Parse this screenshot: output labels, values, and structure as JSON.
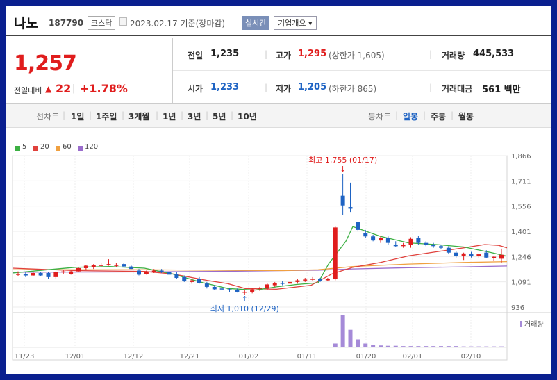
{
  "header": {
    "name": "나노",
    "code": "187790",
    "market": "코스닥",
    "date": "2023.02.17 기준(장마감)",
    "realtime": "실시간",
    "overview": "기업개요 ▾"
  },
  "summary": {
    "price": "1,257",
    "change_label": "전일대비",
    "change_arrow": "▲",
    "change_value": "22",
    "change_sep": "|",
    "change_pct": "+1.78%",
    "prev_label": "전일",
    "prev_value": "1,235",
    "high_label": "고가",
    "high_value": "1,295",
    "upper_limit": "(상한가 1,605)",
    "volume_label": "거래량",
    "volume_value": "445,533",
    "open_label": "시가",
    "open_value": "1,233",
    "low_label": "저가",
    "low_value": "1,205",
    "lower_limit": "(하한가 865)",
    "amount_label": "거래대금",
    "amount_value": "561 백만",
    "sep": "|"
  },
  "toolbar": {
    "line_label": "선차트",
    "line_periods": [
      "1일",
      "1주일",
      "3개월",
      "1년",
      "3년",
      "5년",
      "10년"
    ],
    "candle_label": "봉차트",
    "candle_periods": [
      "일봉",
      "주봉",
      "월봉"
    ],
    "active_candle": "일봉",
    "sep": "|"
  },
  "colors": {
    "up": "#e01d1d",
    "down": "#1e63c3",
    "ma5": "#3cb043",
    "ma20": "#e0413c",
    "ma60": "#f0a040",
    "ma120": "#9a6ccc",
    "volume": "#a58ad8"
  },
  "chart_data": {
    "type": "candlestick",
    "y_ticks": [
      "1,866",
      "1,711",
      "1,556",
      "1,401",
      "1,246",
      "1,091",
      "936"
    ],
    "ylim": [
      936,
      1866
    ],
    "x_ticks": [
      "11/23",
      "12/01",
      "12/12",
      "12/21",
      "01/02",
      "01/11",
      "01/20",
      "02/01",
      "02/10"
    ],
    "legend": [
      "5",
      "20",
      "60",
      "120"
    ],
    "volume_label": "거래량",
    "max_annotation": "최고 1,755 (01/17)",
    "min_annotation": "최저 1,010 (12/29)",
    "candles": [
      [
        1140,
        1155,
        1125,
        1140
      ],
      [
        1140,
        1150,
        1120,
        1130
      ],
      [
        1130,
        1155,
        1125,
        1145
      ],
      [
        1145,
        1150,
        1125,
        1130
      ],
      [
        1145,
        1150,
        1110,
        1120
      ],
      [
        1120,
        1155,
        1110,
        1150
      ],
      [
        1150,
        1165,
        1140,
        1155
      ],
      [
        1140,
        1160,
        1135,
        1155
      ],
      [
        1155,
        1180,
        1150,
        1175
      ],
      [
        1175,
        1195,
        1165,
        1190
      ],
      [
        1180,
        1200,
        1170,
        1195
      ],
      [
        1190,
        1205,
        1180,
        1195
      ],
      [
        1195,
        1230,
        1190,
        1200
      ],
      [
        1190,
        1205,
        1180,
        1195
      ],
      [
        1200,
        1205,
        1180,
        1185
      ],
      [
        1185,
        1190,
        1170,
        1170
      ],
      [
        1160,
        1170,
        1130,
        1135
      ],
      [
        1140,
        1160,
        1135,
        1155
      ],
      [
        1150,
        1170,
        1145,
        1160
      ],
      [
        1160,
        1170,
        1145,
        1150
      ],
      [
        1150,
        1160,
        1130,
        1135
      ],
      [
        1140,
        1150,
        1110,
        1115
      ],
      [
        1120,
        1130,
        1090,
        1095
      ],
      [
        1090,
        1110,
        1080,
        1100
      ],
      [
        1110,
        1120,
        1080,
        1085
      ],
      [
        1080,
        1090,
        1050,
        1060
      ],
      [
        1060,
        1070,
        1040,
        1045
      ],
      [
        1050,
        1060,
        1040,
        1045
      ],
      [
        1045,
        1055,
        1030,
        1040
      ],
      [
        1040,
        1050,
        1025,
        1030
      ],
      [
        1030,
        1040,
        1010,
        1030
      ],
      [
        1030,
        1050,
        1020,
        1045
      ],
      [
        1050,
        1060,
        1035,
        1055
      ],
      [
        1050,
        1080,
        1040,
        1075
      ],
      [
        1070,
        1090,
        1060,
        1085
      ],
      [
        1085,
        1095,
        1070,
        1080
      ],
      [
        1080,
        1095,
        1070,
        1090
      ],
      [
        1090,
        1110,
        1080,
        1100
      ],
      [
        1100,
        1115,
        1090,
        1105
      ],
      [
        1105,
        1120,
        1095,
        1110
      ],
      [
        1110,
        1115,
        1090,
        1095
      ],
      [
        1100,
        1115,
        1095,
        1110
      ],
      [
        1110,
        1430,
        1100,
        1425
      ],
      [
        1620,
        1755,
        1500,
        1560
      ],
      [
        1550,
        1700,
        1520,
        1540
      ],
      [
        1460,
        1460,
        1400,
        1410
      ],
      [
        1390,
        1410,
        1360,
        1370
      ],
      [
        1370,
        1380,
        1340,
        1345
      ],
      [
        1345,
        1370,
        1330,
        1360
      ],
      [
        1360,
        1370,
        1320,
        1330
      ],
      [
        1320,
        1340,
        1305,
        1310
      ],
      [
        1310,
        1330,
        1300,
        1320
      ],
      [
        1320,
        1365,
        1300,
        1355
      ],
      [
        1360,
        1375,
        1320,
        1330
      ],
      [
        1330,
        1340,
        1310,
        1320
      ],
      [
        1320,
        1330,
        1300,
        1310
      ],
      [
        1310,
        1320,
        1290,
        1300
      ],
      [
        1300,
        1310,
        1260,
        1270
      ],
      [
        1270,
        1280,
        1240,
        1250
      ],
      [
        1250,
        1270,
        1225,
        1265
      ],
      [
        1260,
        1275,
        1240,
        1250
      ],
      [
        1250,
        1265,
        1235,
        1260
      ],
      [
        1270,
        1285,
        1235,
        1240
      ],
      [
        1240,
        1250,
        1220,
        1245
      ],
      [
        1233,
        1295,
        1205,
        1257
      ]
    ],
    "volumes": [
      0,
      0,
      0,
      0,
      0,
      0,
      0,
      0,
      0,
      1,
      0,
      0,
      0,
      0,
      0,
      0,
      0,
      0,
      0,
      0,
      0,
      0,
      0,
      0,
      0,
      0,
      0,
      0,
      0,
      0,
      0,
      0,
      0,
      0,
      0,
      0,
      0,
      0,
      0,
      0,
      0,
      0,
      12,
      100,
      55,
      25,
      12,
      8,
      6,
      5,
      5,
      4,
      4,
      4,
      4,
      4,
      4,
      4,
      4,
      3,
      3,
      3,
      3,
      3,
      3
    ],
    "ma5": [
      [
        10,
        1145
      ],
      [
        60,
        1165
      ],
      [
        100,
        1180
      ],
      [
        150,
        1185
      ],
      [
        200,
        1175
      ],
      [
        240,
        1140
      ],
      [
        280,
        1090
      ],
      [
        320,
        1050
      ],
      [
        360,
        1040
      ],
      [
        390,
        1060
      ],
      [
        420,
        1075
      ],
      [
        450,
        1085
      ],
      [
        465,
        1200
      ],
      [
        490,
        1340
      ],
      [
        500,
        1430
      ],
      [
        540,
        1370
      ],
      [
        580,
        1330
      ],
      [
        620,
        1320
      ],
      [
        660,
        1305
      ],
      [
        700,
        1270
      ],
      [
        720,
        1250
      ]
    ],
    "ma20": [
      [
        10,
        1175
      ],
      [
        100,
        1160
      ],
      [
        200,
        1155
      ],
      [
        240,
        1140
      ],
      [
        290,
        1100
      ],
      [
        320,
        1080
      ],
      [
        345,
        1050
      ],
      [
        390,
        1045
      ],
      [
        440,
        1070
      ],
      [
        470,
        1140
      ],
      [
        500,
        1180
      ],
      [
        540,
        1210
      ],
      [
        580,
        1250
      ],
      [
        620,
        1275
      ],
      [
        660,
        1300
      ],
      [
        690,
        1320
      ],
      [
        710,
        1315
      ],
      [
        722,
        1300
      ]
    ],
    "ma60": [
      [
        10,
        1165
      ],
      [
        200,
        1165
      ],
      [
        300,
        1162
      ],
      [
        400,
        1160
      ],
      [
        450,
        1165
      ],
      [
        500,
        1185
      ],
      [
        580,
        1200
      ],
      [
        660,
        1210
      ],
      [
        722,
        1215
      ]
    ],
    "ma120": [
      [
        10,
        1150
      ],
      [
        200,
        1152
      ],
      [
        300,
        1155
      ],
      [
        400,
        1160
      ],
      [
        450,
        1162
      ],
      [
        500,
        1170
      ],
      [
        580,
        1178
      ],
      [
        660,
        1183
      ],
      [
        722,
        1188
      ]
    ]
  }
}
